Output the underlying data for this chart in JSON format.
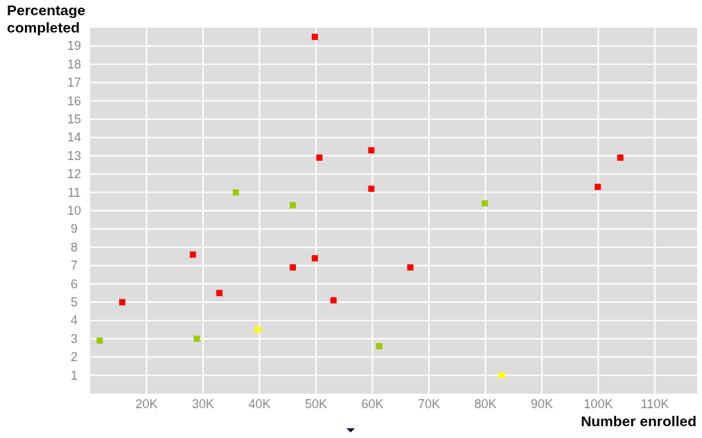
{
  "chart_data": {
    "type": "scatter",
    "xlabel": "Number enrolled",
    "ylabel": "Percentage completed",
    "xlim": [
      10000,
      117500
    ],
    "ylim": [
      0,
      20
    ],
    "xticks": [
      {
        "value": 20000,
        "label": "20K"
      },
      {
        "value": 30000,
        "label": "30K"
      },
      {
        "value": 40000,
        "label": "40K"
      },
      {
        "value": 50000,
        "label": "50K"
      },
      {
        "value": 60000,
        "label": "60K"
      },
      {
        "value": 70000,
        "label": "70K"
      },
      {
        "value": 80000,
        "label": "80K"
      },
      {
        "value": 90000,
        "label": "90K"
      },
      {
        "value": 100000,
        "label": "100K"
      },
      {
        "value": 110000,
        "label": "110K"
      }
    ],
    "yticks": [
      1,
      2,
      3,
      4,
      5,
      6,
      7,
      8,
      9,
      10,
      11,
      12,
      13,
      14,
      15,
      16,
      17,
      18,
      19
    ],
    "grid": true,
    "marker": "square",
    "series": [
      {
        "color": "#ff0000",
        "x": [
          49800,
          59800,
          50600,
          103900,
          59800,
          99900,
          28200,
          49800,
          45900,
          66700,
          32900,
          15700,
          53100
        ],
        "values": [
          19.5,
          13.3,
          12.9,
          12.9,
          11.2,
          11.3,
          7.6,
          7.4,
          6.9,
          6.9,
          5.5,
          5.0,
          5.1
        ]
      },
      {
        "color": "#99cc00",
        "x": [
          35800,
          45900,
          79900,
          11700,
          28900,
          61200
        ],
        "values": [
          11.0,
          10.3,
          10.4,
          2.9,
          3.0,
          2.6
        ]
      },
      {
        "color": "#ffff00",
        "x": [
          39700,
          82900
        ],
        "values": [
          3.5,
          1.0
        ]
      }
    ]
  }
}
